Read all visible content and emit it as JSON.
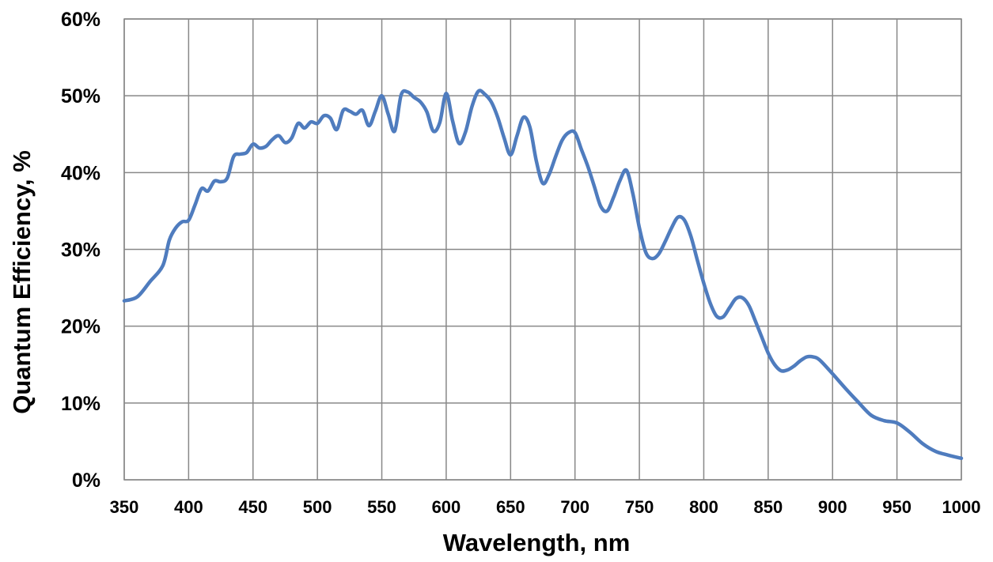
{
  "chart_data": {
    "type": "line",
    "title": "",
    "xlabel": "Wavelength, nm",
    "ylabel": "Quantum Efficiency, %",
    "xlim": [
      350,
      1000
    ],
    "ylim": [
      0,
      60
    ],
    "x_ticks": [
      "350",
      "400",
      "450",
      "500",
      "550",
      "600",
      "650",
      "700",
      "750",
      "800",
      "850",
      "900",
      "950",
      "1000"
    ],
    "y_ticks": [
      "0%",
      "10%",
      "20%",
      "30%",
      "40%",
      "50%",
      "60%"
    ],
    "grid": true,
    "legend": "none",
    "line_color": "#4F7CBE",
    "series": [
      {
        "x": [
          350,
          360,
          370,
          380,
          385,
          390,
          395,
          400,
          405,
          410,
          415,
          420,
          425,
          430,
          435,
          440,
          445,
          450,
          455,
          460,
          465,
          470,
          475,
          480,
          485,
          490,
          495,
          500,
          505,
          510,
          515,
          520,
          525,
          530,
          535,
          540,
          545,
          550,
          555,
          560,
          565,
          570,
          575,
          580,
          585,
          590,
          595,
          600,
          605,
          610,
          615,
          620,
          625,
          630,
          635,
          640,
          645,
          650,
          655,
          660,
          665,
          670,
          675,
          680,
          685,
          690,
          695,
          700,
          705,
          710,
          715,
          720,
          725,
          730,
          735,
          740,
          745,
          750,
          755,
          760,
          765,
          770,
          775,
          780,
          785,
          790,
          795,
          800,
          805,
          810,
          815,
          820,
          825,
          830,
          835,
          840,
          845,
          850,
          855,
          860,
          865,
          870,
          875,
          880,
          885,
          890,
          900,
          910,
          920,
          930,
          940,
          950,
          960,
          970,
          980,
          990,
          1000
        ],
        "y": [
          23.3,
          23.8,
          25.8,
          27.9,
          31.2,
          32.8,
          33.6,
          33.8,
          35.8,
          37.9,
          37.6,
          38.9,
          38.8,
          39.3,
          42.1,
          42.4,
          42.6,
          43.7,
          43.2,
          43.4,
          44.3,
          44.8,
          43.9,
          44.5,
          46.4,
          45.8,
          46.6,
          46.4,
          47.4,
          47.1,
          45.6,
          48.1,
          48.0,
          47.6,
          48.1,
          46.1,
          48.0,
          50.0,
          47.6,
          45.4,
          50.1,
          50.5,
          49.8,
          49.2,
          47.9,
          45.4,
          46.5,
          50.3,
          46.7,
          43.8,
          45.3,
          48.6,
          50.6,
          50.2,
          49.2,
          47.2,
          44.5,
          42.3,
          44.8,
          47.2,
          45.9,
          41.5,
          38.6,
          39.8,
          42.1,
          44.2,
          45.2,
          45.2,
          43.0,
          40.8,
          38.2,
          35.6,
          35.0,
          36.8,
          39.0,
          40.3,
          37.2,
          32.8,
          29.6,
          28.8,
          29.4,
          31.0,
          32.8,
          34.2,
          33.8,
          31.7,
          28.6,
          25.6,
          23.0,
          21.3,
          21.2,
          22.4,
          23.6,
          23.7,
          22.7,
          20.7,
          18.6,
          16.5,
          15.0,
          14.2,
          14.3,
          14.8,
          15.5,
          16.0,
          16.0,
          15.6,
          13.8,
          11.9,
          10.1,
          8.4,
          7.7,
          7.4,
          6.2,
          4.7,
          3.7,
          3.2,
          2.8
        ]
      }
    ]
  }
}
